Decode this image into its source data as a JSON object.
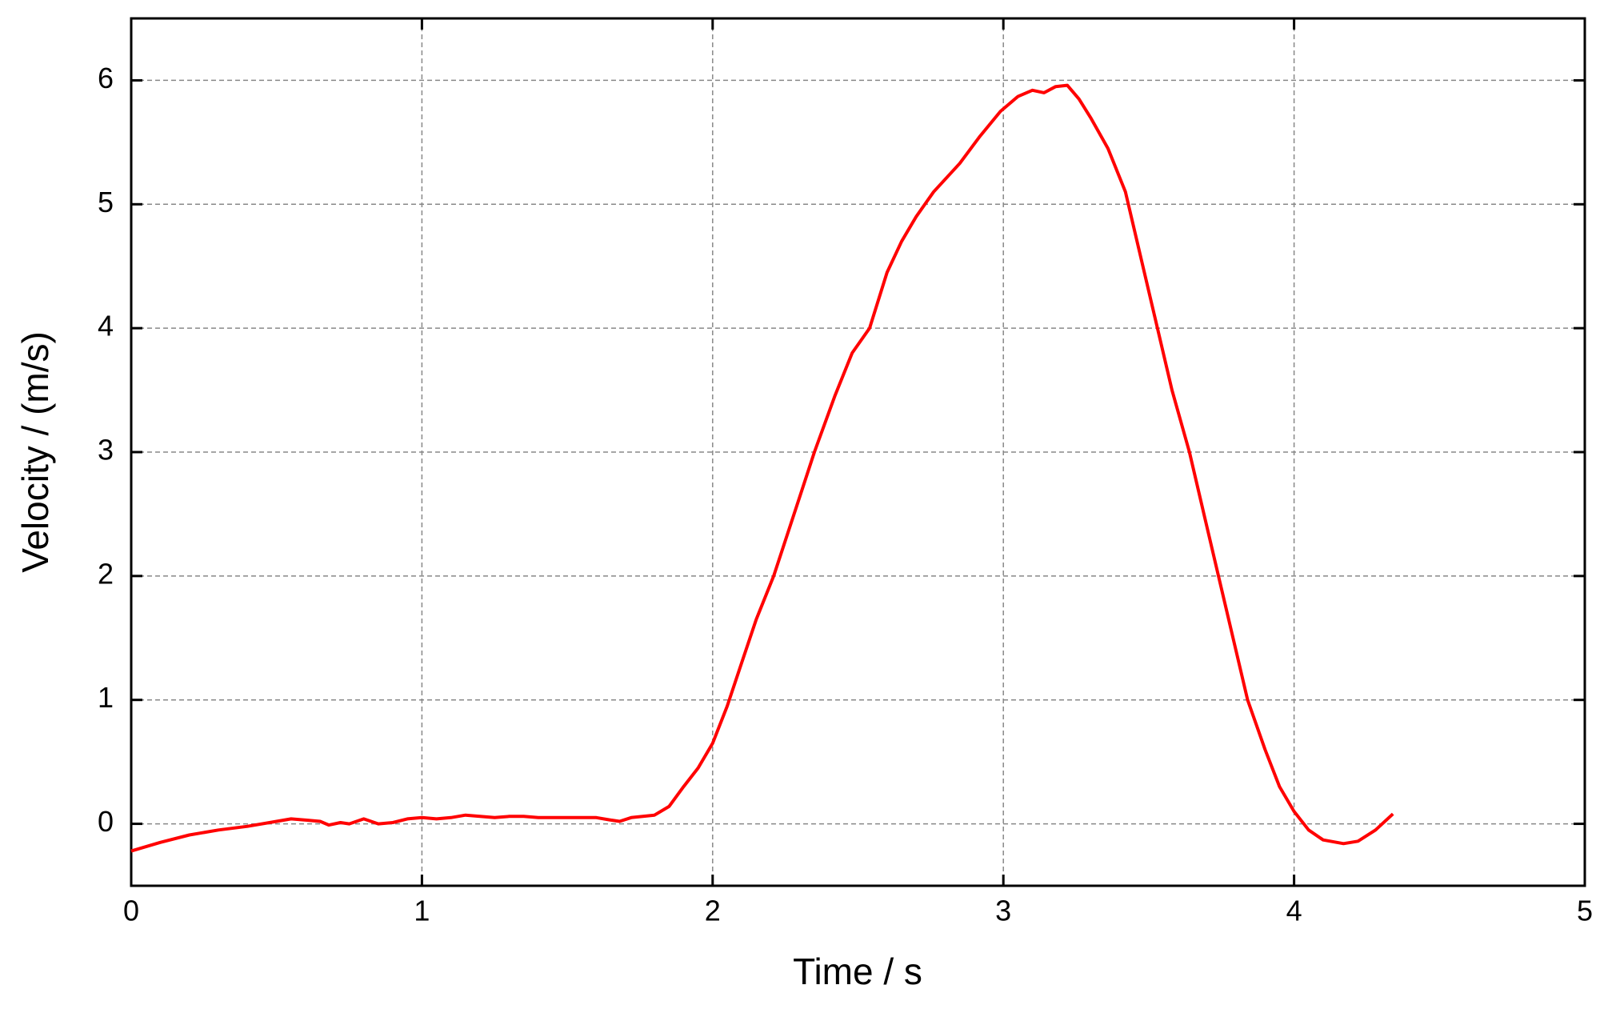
{
  "chart_data": {
    "type": "line",
    "xlabel": "Time / s",
    "ylabel": "Velocity / (m/s)",
    "xlim": [
      0,
      5
    ],
    "ylim": [
      -0.5,
      6.5
    ],
    "xticks": [
      0,
      1,
      2,
      3,
      4,
      5
    ],
    "yticks": [
      0,
      1,
      2,
      3,
      4,
      5,
      6
    ],
    "grid": true,
    "series": [
      {
        "color": "#ff0000",
        "x": [
          0,
          0.1,
          0.2,
          0.3,
          0.4,
          0.5,
          0.55,
          0.6,
          0.65,
          0.68,
          0.72,
          0.75,
          0.8,
          0.85,
          0.9,
          0.95,
          1.0,
          1.05,
          1.1,
          1.15,
          1.2,
          1.25,
          1.3,
          1.35,
          1.4,
          1.5,
          1.6,
          1.65,
          1.68,
          1.72,
          1.8,
          1.85,
          1.9,
          1.95,
          2.0,
          2.05,
          2.1,
          2.15,
          2.21,
          2.28,
          2.35,
          2.42,
          2.48,
          2.54,
          2.6,
          2.65,
          2.7,
          2.76,
          2.85,
          2.92,
          2.99,
          3.05,
          3.1,
          3.14,
          3.18,
          3.22,
          3.26,
          3.3,
          3.36,
          3.42,
          3.48,
          3.53,
          3.58,
          3.64,
          3.69,
          3.74,
          3.79,
          3.84,
          3.9,
          3.95,
          4.0,
          4.05,
          4.1,
          4.17,
          4.22,
          4.28,
          4.34
        ],
        "values": [
          -0.22,
          -0.15,
          -0.09,
          -0.05,
          -0.02,
          0.02,
          0.04,
          0.03,
          0.02,
          -0.01,
          0.01,
          0.0,
          0.04,
          0.0,
          0.01,
          0.04,
          0.05,
          0.04,
          0.05,
          0.07,
          0.06,
          0.05,
          0.06,
          0.06,
          0.05,
          0.05,
          0.05,
          0.03,
          0.02,
          0.05,
          0.07,
          0.14,
          0.3,
          0.45,
          0.65,
          0.95,
          1.3,
          1.65,
          2.0,
          2.5,
          3.0,
          3.45,
          3.8,
          4.0,
          4.45,
          4.7,
          4.9,
          5.1,
          5.33,
          5.55,
          5.75,
          5.87,
          5.92,
          5.9,
          5.95,
          5.96,
          5.85,
          5.7,
          5.45,
          5.1,
          4.5,
          4.0,
          3.5,
          3.0,
          2.5,
          2.0,
          1.5,
          1.0,
          0.6,
          0.3,
          0.1,
          -0.05,
          -0.13,
          -0.16,
          -0.14,
          -0.05,
          0.08
        ]
      }
    ]
  }
}
